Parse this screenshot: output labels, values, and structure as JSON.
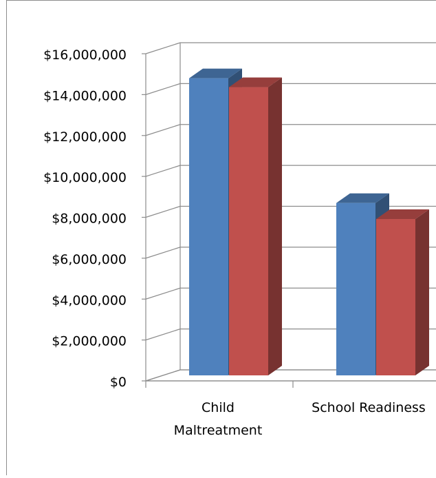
{
  "chart_data": {
    "type": "bar",
    "style": "3d-clustered",
    "categories": [
      "Child Maltreatment",
      "School Readiness"
    ],
    "category_label_lines": [
      [
        "Child",
        "Maltreatment"
      ],
      [
        "School Readiness"
      ]
    ],
    "series": [
      {
        "color": "#4F81BD",
        "values": [
          14800000,
          8700000
        ]
      },
      {
        "color": "#C0504D",
        "values": [
          14500000,
          8050000
        ]
      }
    ],
    "y_ticks": [
      "$0",
      "$2,000,000",
      "$4,000,000",
      "$6,000,000",
      "$8,000,000",
      "$10,000,000",
      "$12,000,000",
      "$14,000,000",
      "$16,000,000"
    ],
    "ylim": [
      0,
      16000000
    ],
    "grid": true,
    "legend": "none",
    "title": "",
    "xlabel": "",
    "ylabel": ""
  }
}
